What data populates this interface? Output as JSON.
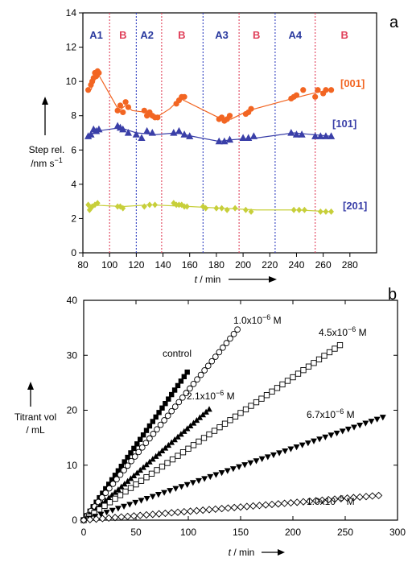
{
  "chart_data": [
    {
      "type": "scatter",
      "panel_label": "a",
      "xlabel_var": "t",
      "xlabel_unit": " / min",
      "ylabel_line1": "Step rel.",
      "ylabel_line2": "/nm s",
      "ylabel_sup": "−1",
      "xlim": [
        80,
        300
      ],
      "ylim": [
        0,
        14
      ],
      "xticks": [
        "80",
        "100",
        "120",
        "140",
        "160",
        "180",
        "200",
        "220",
        "240",
        "260",
        "280"
      ],
      "yticks": [
        "0",
        "2",
        "4",
        "6",
        "8",
        "10",
        "12",
        "14"
      ],
      "segments": [
        {
          "label": "A1",
          "x": 90
        },
        {
          "label": "B",
          "x": 110
        },
        {
          "label": "A2",
          "x": 128
        },
        {
          "label": "B",
          "x": 154
        },
        {
          "label": "A3",
          "x": 184
        },
        {
          "label": "B",
          "x": 210
        },
        {
          "label": "A4",
          "x": 239
        },
        {
          "label": "B",
          "x": 276
        }
      ],
      "boundaries": [
        {
          "x": 100,
          "color": "#e0405a"
        },
        {
          "x": 120,
          "color": "#3040c0"
        },
        {
          "x": 139,
          "color": "#e0405a"
        },
        {
          "x": 170,
          "color": "#3040c0"
        },
        {
          "x": 197,
          "color": "#e0405a"
        },
        {
          "x": 224,
          "color": "#3040c0"
        },
        {
          "x": 254,
          "color": "#e0405a"
        }
      ],
      "series": [
        {
          "name": "[001]",
          "color": "#f26522",
          "line": [
            [
              86,
              9.5
            ],
            [
              91,
              10.5
            ],
            [
              107,
              8.3
            ],
            [
              112,
              8.6
            ],
            [
              117,
              8.3
            ],
            [
              127,
              8.2
            ],
            [
              135,
              7.9
            ],
            [
              145,
              8.4
            ],
            [
              153,
              9.0
            ],
            [
              184,
              7.8
            ],
            [
              191,
              7.8
            ],
            [
              204,
              8.3
            ],
            [
              237,
              9.0
            ],
            [
              252,
              9.3
            ],
            [
              258,
              9.4
            ],
            [
              265,
              9.5
            ]
          ],
          "points": [
            [
              84,
              9.5
            ],
            [
              86,
              9.8
            ],
            [
              87,
              10.0
            ],
            [
              88,
              10.2
            ],
            [
              89,
              10.5
            ],
            [
              90,
              10.3
            ],
            [
              91,
              10.6
            ],
            [
              92,
              10.5
            ],
            [
              106,
              8.3
            ],
            [
              108,
              8.6
            ],
            [
              110,
              8.2
            ],
            [
              112,
              8.8
            ],
            [
              114,
              8.5
            ],
            [
              126,
              8.3
            ],
            [
              128,
              8.0
            ],
            [
              130,
              8.2
            ],
            [
              132,
              8.0
            ],
            [
              134,
              7.9
            ],
            [
              136,
              7.9
            ],
            [
              150,
              8.7
            ],
            [
              152,
              8.9
            ],
            [
              154,
              9.1
            ],
            [
              156,
              9.1
            ],
            [
              182,
              7.8
            ],
            [
              184,
              7.9
            ],
            [
              186,
              7.7
            ],
            [
              188,
              7.8
            ],
            [
              190,
              8.0
            ],
            [
              202,
              8.1
            ],
            [
              204,
              8.2
            ],
            [
              206,
              8.4
            ],
            [
              236,
              9.0
            ],
            [
              238,
              9.1
            ],
            [
              240,
              9.2
            ],
            [
              245,
              9.5
            ],
            [
              254,
              9.1
            ],
            [
              256,
              9.5
            ],
            [
              260,
              9.3
            ],
            [
              262,
              9.5
            ],
            [
              266,
              9.5
            ]
          ]
        },
        {
          "name": "[101]",
          "color": "#3a3fa8",
          "line": [
            [
              84,
              6.8
            ],
            [
              90,
              7.1
            ],
            [
              108,
              7.3
            ],
            [
              120,
              7.0
            ],
            [
              135,
              6.9
            ],
            [
              150,
              7.0
            ],
            [
              162,
              6.8
            ],
            [
              182,
              6.5
            ],
            [
              192,
              6.6
            ],
            [
              210,
              6.7
            ],
            [
              238,
              7.0
            ],
            [
              252,
              6.9
            ],
            [
              266,
              6.8
            ]
          ],
          "points": [
            [
              84,
              6.8
            ],
            [
              86,
              6.9
            ],
            [
              88,
              7.2
            ],
            [
              90,
              7.1
            ],
            [
              92,
              7.2
            ],
            [
              106,
              7.4
            ],
            [
              108,
              7.3
            ],
            [
              110,
              7.2
            ],
            [
              114,
              7.0
            ],
            [
              120,
              6.9
            ],
            [
              124,
              6.7
            ],
            [
              128,
              7.1
            ],
            [
              132,
              7.0
            ],
            [
              148,
              7.0
            ],
            [
              152,
              7.1
            ],
            [
              156,
              6.9
            ],
            [
              160,
              6.8
            ],
            [
              182,
              6.5
            ],
            [
              186,
              6.5
            ],
            [
              190,
              6.6
            ],
            [
              200,
              6.7
            ],
            [
              204,
              6.7
            ],
            [
              208,
              6.8
            ],
            [
              236,
              7.0
            ],
            [
              240,
              6.9
            ],
            [
              244,
              6.9
            ],
            [
              254,
              6.8
            ],
            [
              258,
              6.8
            ],
            [
              262,
              6.8
            ],
            [
              266,
              6.8
            ]
          ]
        },
        {
          "name": "[201]",
          "color": "#c7cf3a",
          "line": [
            [
              84,
              2.8
            ],
            [
              110,
              2.7
            ],
            [
              130,
              2.8
            ],
            [
              160,
              2.7
            ],
            [
              185,
              2.6
            ],
            [
              210,
              2.5
            ],
            [
              240,
              2.5
            ],
            [
              266,
              2.4
            ]
          ],
          "points": [
            [
              84,
              2.8
            ],
            [
              85,
              2.5
            ],
            [
              86,
              2.6
            ],
            [
              87,
              2.7
            ],
            [
              89,
              2.8
            ],
            [
              91,
              2.9
            ],
            [
              106,
              2.7
            ],
            [
              108,
              2.7
            ],
            [
              110,
              2.6
            ],
            [
              126,
              2.7
            ],
            [
              130,
              2.8
            ],
            [
              134,
              2.8
            ],
            [
              148,
              2.9
            ],
            [
              150,
              2.8
            ],
            [
              152,
              2.8
            ],
            [
              154,
              2.8
            ],
            [
              156,
              2.7
            ],
            [
              158,
              2.7
            ],
            [
              170,
              2.7
            ],
            [
              172,
              2.6
            ],
            [
              180,
              2.6
            ],
            [
              184,
              2.6
            ],
            [
              188,
              2.5
            ],
            [
              194,
              2.6
            ],
            [
              202,
              2.5
            ],
            [
              206,
              2.4
            ],
            [
              238,
              2.5
            ],
            [
              242,
              2.5
            ],
            [
              246,
              2.5
            ],
            [
              258,
              2.4
            ],
            [
              262,
              2.4
            ],
            [
              266,
              2.4
            ]
          ]
        }
      ]
    },
    {
      "type": "scatter",
      "panel_label": "b",
      "xlabel_var": "t",
      "xlabel_unit": " / min",
      "ylabel_line1": "Titrant vol",
      "ylabel_line2": "/ mL",
      "xlim": [
        0,
        300
      ],
      "ylim": [
        0,
        40
      ],
      "xticks": [
        "0",
        "50",
        "100",
        "150",
        "200",
        "250",
        "300"
      ],
      "yticks": [
        "0",
        "10",
        "20",
        "30",
        "40"
      ],
      "series": [
        {
          "label": "control",
          "marker": "filled-square",
          "xmax": 100,
          "slope": 0.272,
          "step": 3
        },
        {
          "label_pre": "1.0x10",
          "label_exp": "−6",
          "label_post": " M",
          "marker": "open-circle",
          "xmax": 148,
          "slope": 0.236,
          "step": 3.5
        },
        {
          "label_pre": "2.1x10",
          "label_exp": "−6",
          "label_post": " M",
          "marker": "filled-triangle-up",
          "xmax": 122,
          "slope": 0.168,
          "step": 3
        },
        {
          "label_pre": "4.5x10",
          "label_exp": "−6",
          "label_post": " M",
          "marker": "open-square",
          "xmax": 245,
          "slope": 0.13,
          "step": 5
        },
        {
          "label_pre": "6.7x10",
          "label_exp": "−6",
          "label_post": " M",
          "marker": "filled-triangle-down",
          "xmax": 290,
          "slope": 0.0655,
          "step": 5.5
        },
        {
          "label_pre": "1.0x10",
          "label_exp": "−5",
          "label_post": " M",
          "marker": "open-diamond",
          "xmax": 283,
          "slope": 0.0159,
          "step": 6
        }
      ]
    }
  ]
}
